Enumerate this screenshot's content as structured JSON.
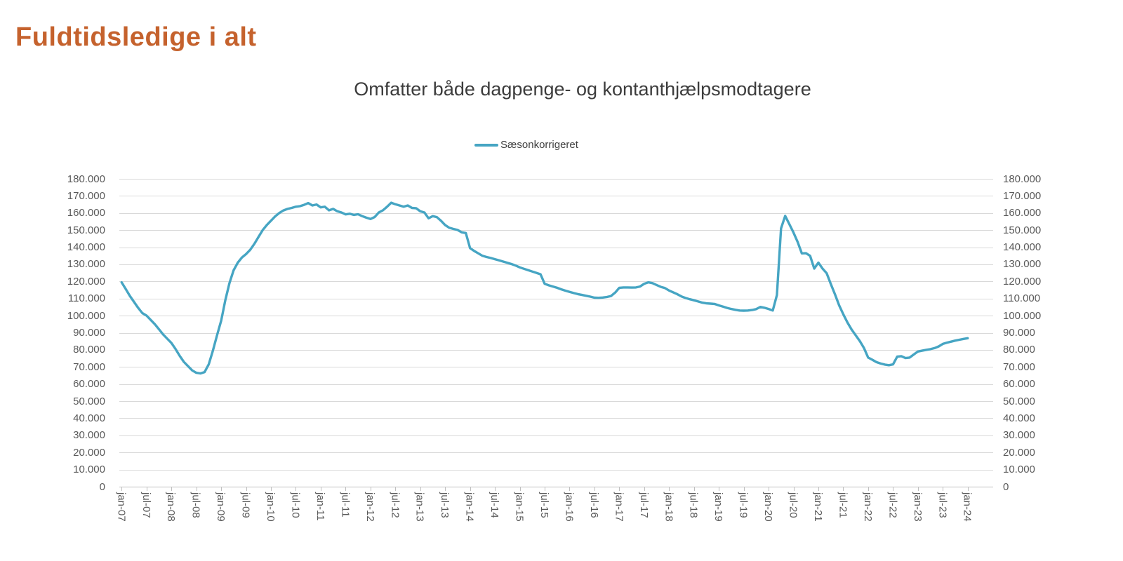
{
  "page": {
    "title": "Fuldtidsledige i alt"
  },
  "chart": {
    "title": "Omfatter både dagpenge- og kontanthjælpsmodtagere",
    "legend": {
      "label": "Sæsonkorrigeret"
    }
  },
  "colors": {
    "line": "#46A5C3",
    "grid": "#D9D9D9",
    "axis": "#BFBFBF",
    "tick_text": "#595959",
    "page_title": "#C5622D",
    "chart_title": "#3C3C3C"
  },
  "chart_data": {
    "type": "line",
    "title": "Omfatter både dagpenge- og kontanthjælpsmodtagere",
    "ylim": [
      0,
      180000
    ],
    "y_tick_step": 10000,
    "grid": "horizontal",
    "dual_y_axis": true,
    "legend_position": "top-center",
    "frequency": "monthly",
    "x_start": "jan-07",
    "x_end": "jan-24",
    "x_tick_labels": [
      "jan-07",
      "jul-07",
      "jan-08",
      "jul-08",
      "jan-09",
      "jul-09",
      "jan-10",
      "jul-10",
      "jan-11",
      "jul-11",
      "jan-12",
      "jul-12",
      "jan-13",
      "jul-13",
      "jan-14",
      "jul-14",
      "jan-15",
      "jul-15",
      "jan-16",
      "jul-16",
      "jan-17",
      "jul-17",
      "jan-18",
      "jul-18",
      "jan-19",
      "jul-19",
      "jan-20",
      "jul-20",
      "jan-21",
      "jul-21",
      "jan-22",
      "jul-22",
      "jan-23",
      "jul-23",
      "jan-24"
    ],
    "y_tick_labels": [
      "180.000",
      "170.000",
      "160.000",
      "150.000",
      "140.000",
      "130.000",
      "120.000",
      "110.000",
      "100.000",
      "90.000",
      "80.000",
      "70.000",
      "60.000",
      "50.000",
      "40.000",
      "30.000",
      "20.000",
      "10.000",
      "0"
    ],
    "series": [
      {
        "name": "Sæsonkorrigeret",
        "color": "#46A5C3",
        "values": [
          119500,
          115500,
          111500,
          108000,
          104500,
          101500,
          100000,
          97500,
          95000,
          92000,
          89000,
          86500,
          84000,
          80500,
          76500,
          73000,
          70500,
          68000,
          66600,
          66200,
          67000,
          71500,
          79500,
          88500,
          97000,
          109000,
          119000,
          126500,
          131000,
          134000,
          136000,
          138500,
          142000,
          146000,
          150000,
          153000,
          155500,
          158000,
          160000,
          161500,
          162400,
          163000,
          163700,
          164000,
          164800,
          165800,
          164400,
          165000,
          163300,
          163700,
          161600,
          162400,
          161000,
          160300,
          159200,
          159600,
          158900,
          159300,
          158200,
          157300,
          156500,
          157600,
          160300,
          161600,
          163700,
          166000,
          165100,
          164400,
          163700,
          164400,
          163000,
          162800,
          161000,
          160300,
          156900,
          158200,
          157600,
          155500,
          153000,
          151400,
          150700,
          150100,
          148700,
          148300,
          139500,
          137800,
          136400,
          135000,
          134300,
          133700,
          133000,
          132300,
          131600,
          130900,
          130200,
          129300,
          128200,
          127400,
          126600,
          125800,
          125000,
          124200,
          118600,
          117700,
          117000,
          116300,
          115400,
          114600,
          113900,
          113200,
          112600,
          112100,
          111600,
          111100,
          110500,
          110400,
          110600,
          110900,
          111500,
          113500,
          116300,
          116500,
          116500,
          116400,
          116500,
          117000,
          118600,
          119500,
          119000,
          117900,
          116800,
          116100,
          114700,
          113600,
          112500,
          111200,
          110300,
          109600,
          109000,
          108300,
          107600,
          107200,
          107000,
          106800,
          106000,
          105300,
          104500,
          103900,
          103400,
          103000,
          102900,
          103000,
          103300,
          103800,
          105100,
          104600,
          103900,
          103000,
          112000,
          151000,
          158300,
          153500,
          148500,
          143000,
          136400,
          136500,
          135000,
          127500,
          131000,
          127500,
          124800,
          118500,
          112500,
          106000,
          100800,
          96000,
          91900,
          88500,
          85100,
          81000,
          75500,
          74200,
          72800,
          72000,
          71400,
          71000,
          71500,
          76000,
          76300,
          75200,
          75500,
          77300,
          79000,
          79500,
          80000,
          80400,
          81000,
          82000,
          83500,
          84200,
          84800,
          85400,
          85900,
          86400,
          86800
        ]
      }
    ]
  }
}
